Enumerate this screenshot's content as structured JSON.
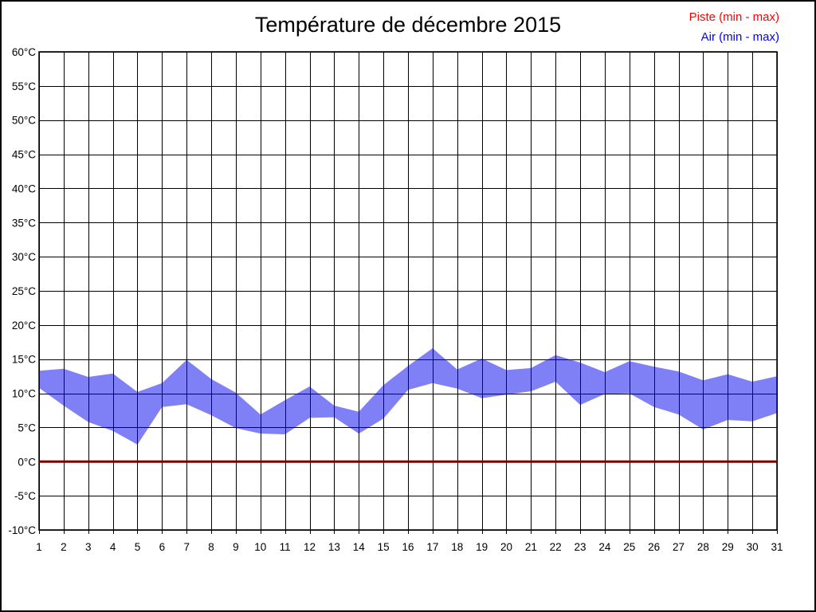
{
  "header": {
    "title": "Température de décembre 2015"
  },
  "legend": [
    {
      "label": "Piste (min - max)",
      "color": "#ff0000"
    },
    {
      "label": "Air (min - max)",
      "color": "#0000ff"
    }
  ],
  "chart_data": {
    "type": "area",
    "title": "Température de décembre 2015",
    "xlabel": "",
    "ylabel": "",
    "x": [
      1,
      2,
      3,
      4,
      5,
      6,
      7,
      8,
      9,
      10,
      11,
      12,
      13,
      14,
      15,
      16,
      17,
      18,
      19,
      20,
      21,
      22,
      23,
      24,
      25,
      26,
      27,
      28,
      29,
      30,
      31
    ],
    "series": [
      {
        "name": "Piste (min - max)",
        "min": [
          0,
          0,
          0,
          0,
          0,
          0,
          0,
          0,
          0,
          0,
          0,
          0,
          0,
          0,
          0,
          0,
          0,
          0,
          0,
          0,
          0,
          0,
          0,
          0,
          0,
          0,
          0,
          0,
          0,
          0,
          0
        ],
        "max": [
          0,
          0,
          0,
          0,
          0,
          0,
          0,
          0,
          0,
          0,
          0,
          0,
          0,
          0,
          0,
          0,
          0,
          0,
          0,
          0,
          0,
          0,
          0,
          0,
          0,
          0,
          0,
          0,
          0,
          0,
          0
        ],
        "line_color": "#7a0000",
        "line_width": 3
      },
      {
        "name": "Air (min - max)",
        "min": [
          10.8,
          8.2,
          5.8,
          4.5,
          2.5,
          8.0,
          8.4,
          6.8,
          4.9,
          4.1,
          4.0,
          6.4,
          6.5,
          4.1,
          6.3,
          10.5,
          11.5,
          10.7,
          9.3,
          9.8,
          10.3,
          11.7,
          8.3,
          9.9,
          10.0,
          8.0,
          6.9,
          4.7,
          6.1,
          5.9,
          7.1
        ],
        "max": [
          13.3,
          13.6,
          12.4,
          12.9,
          10.2,
          11.5,
          14.9,
          12.1,
          10.1,
          6.9,
          9.0,
          11.0,
          8.2,
          7.3,
          11.2,
          14.0,
          16.6,
          13.5,
          15.1,
          13.4,
          13.7,
          15.6,
          14.5,
          13.1,
          14.7,
          13.9,
          13.2,
          11.9,
          12.8,
          11.7,
          12.5
        ],
        "fill_color": "#0000ee",
        "fill_opacity": 0.5
      }
    ],
    "ylim": [
      -10,
      60
    ],
    "ytick_step": 5,
    "y_unit": "°C",
    "grid": true,
    "grid_color": "#000000",
    "legend_position": "top-right"
  }
}
